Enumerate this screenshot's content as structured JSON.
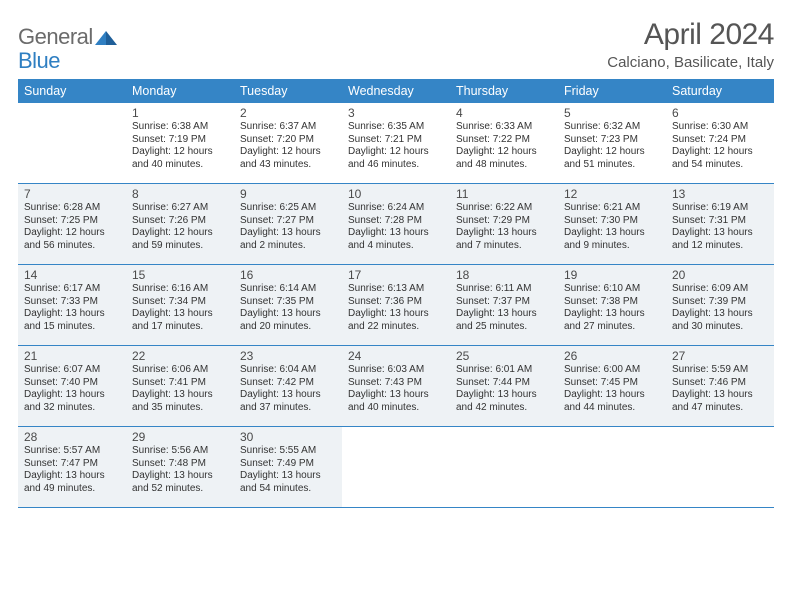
{
  "logo": {
    "word1": "General",
    "word2": "Blue"
  },
  "title": "April 2024",
  "location": "Calciano, Basilicate, Italy",
  "style": {
    "accent": "#3585c6",
    "shade_bg": "#eef2f5",
    "text_color": "#3a3a3a",
    "logo_gray": "#6b6b6b",
    "logo_blue": "#2f7fc2",
    "title_fontsize": 30,
    "location_fontsize": 15,
    "head_fontsize": 12.5,
    "cell_fontsize": 10,
    "columns": 7
  },
  "day_headers": [
    "Sunday",
    "Monday",
    "Tuesday",
    "Wednesday",
    "Thursday",
    "Friday",
    "Saturday"
  ],
  "weeks": [
    {
      "shaded": false,
      "days": [
        {
          "num": "",
          "sunrise": "",
          "sunset": "",
          "daylight": ""
        },
        {
          "num": "1",
          "sunrise": "Sunrise: 6:38 AM",
          "sunset": "Sunset: 7:19 PM",
          "daylight": "Daylight: 12 hours and 40 minutes."
        },
        {
          "num": "2",
          "sunrise": "Sunrise: 6:37 AM",
          "sunset": "Sunset: 7:20 PM",
          "daylight": "Daylight: 12 hours and 43 minutes."
        },
        {
          "num": "3",
          "sunrise": "Sunrise: 6:35 AM",
          "sunset": "Sunset: 7:21 PM",
          "daylight": "Daylight: 12 hours and 46 minutes."
        },
        {
          "num": "4",
          "sunrise": "Sunrise: 6:33 AM",
          "sunset": "Sunset: 7:22 PM",
          "daylight": "Daylight: 12 hours and 48 minutes."
        },
        {
          "num": "5",
          "sunrise": "Sunrise: 6:32 AM",
          "sunset": "Sunset: 7:23 PM",
          "daylight": "Daylight: 12 hours and 51 minutes."
        },
        {
          "num": "6",
          "sunrise": "Sunrise: 6:30 AM",
          "sunset": "Sunset: 7:24 PM",
          "daylight": "Daylight: 12 hours and 54 minutes."
        }
      ]
    },
    {
      "shaded": true,
      "days": [
        {
          "num": "7",
          "sunrise": "Sunrise: 6:28 AM",
          "sunset": "Sunset: 7:25 PM",
          "daylight": "Daylight: 12 hours and 56 minutes."
        },
        {
          "num": "8",
          "sunrise": "Sunrise: 6:27 AM",
          "sunset": "Sunset: 7:26 PM",
          "daylight": "Daylight: 12 hours and 59 minutes."
        },
        {
          "num": "9",
          "sunrise": "Sunrise: 6:25 AM",
          "sunset": "Sunset: 7:27 PM",
          "daylight": "Daylight: 13 hours and 2 minutes."
        },
        {
          "num": "10",
          "sunrise": "Sunrise: 6:24 AM",
          "sunset": "Sunset: 7:28 PM",
          "daylight": "Daylight: 13 hours and 4 minutes."
        },
        {
          "num": "11",
          "sunrise": "Sunrise: 6:22 AM",
          "sunset": "Sunset: 7:29 PM",
          "daylight": "Daylight: 13 hours and 7 minutes."
        },
        {
          "num": "12",
          "sunrise": "Sunrise: 6:21 AM",
          "sunset": "Sunset: 7:30 PM",
          "daylight": "Daylight: 13 hours and 9 minutes."
        },
        {
          "num": "13",
          "sunrise": "Sunrise: 6:19 AM",
          "sunset": "Sunset: 7:31 PM",
          "daylight": "Daylight: 13 hours and 12 minutes."
        }
      ]
    },
    {
      "shaded": true,
      "days": [
        {
          "num": "14",
          "sunrise": "Sunrise: 6:17 AM",
          "sunset": "Sunset: 7:33 PM",
          "daylight": "Daylight: 13 hours and 15 minutes."
        },
        {
          "num": "15",
          "sunrise": "Sunrise: 6:16 AM",
          "sunset": "Sunset: 7:34 PM",
          "daylight": "Daylight: 13 hours and 17 minutes."
        },
        {
          "num": "16",
          "sunrise": "Sunrise: 6:14 AM",
          "sunset": "Sunset: 7:35 PM",
          "daylight": "Daylight: 13 hours and 20 minutes."
        },
        {
          "num": "17",
          "sunrise": "Sunrise: 6:13 AM",
          "sunset": "Sunset: 7:36 PM",
          "daylight": "Daylight: 13 hours and 22 minutes."
        },
        {
          "num": "18",
          "sunrise": "Sunrise: 6:11 AM",
          "sunset": "Sunset: 7:37 PM",
          "daylight": "Daylight: 13 hours and 25 minutes."
        },
        {
          "num": "19",
          "sunrise": "Sunrise: 6:10 AM",
          "sunset": "Sunset: 7:38 PM",
          "daylight": "Daylight: 13 hours and 27 minutes."
        },
        {
          "num": "20",
          "sunrise": "Sunrise: 6:09 AM",
          "sunset": "Sunset: 7:39 PM",
          "daylight": "Daylight: 13 hours and 30 minutes."
        }
      ]
    },
    {
      "shaded": true,
      "days": [
        {
          "num": "21",
          "sunrise": "Sunrise: 6:07 AM",
          "sunset": "Sunset: 7:40 PM",
          "daylight": "Daylight: 13 hours and 32 minutes."
        },
        {
          "num": "22",
          "sunrise": "Sunrise: 6:06 AM",
          "sunset": "Sunset: 7:41 PM",
          "daylight": "Daylight: 13 hours and 35 minutes."
        },
        {
          "num": "23",
          "sunrise": "Sunrise: 6:04 AM",
          "sunset": "Sunset: 7:42 PM",
          "daylight": "Daylight: 13 hours and 37 minutes."
        },
        {
          "num": "24",
          "sunrise": "Sunrise: 6:03 AM",
          "sunset": "Sunset: 7:43 PM",
          "daylight": "Daylight: 13 hours and 40 minutes."
        },
        {
          "num": "25",
          "sunrise": "Sunrise: 6:01 AM",
          "sunset": "Sunset: 7:44 PM",
          "daylight": "Daylight: 13 hours and 42 minutes."
        },
        {
          "num": "26",
          "sunrise": "Sunrise: 6:00 AM",
          "sunset": "Sunset: 7:45 PM",
          "daylight": "Daylight: 13 hours and 44 minutes."
        },
        {
          "num": "27",
          "sunrise": "Sunrise: 5:59 AM",
          "sunset": "Sunset: 7:46 PM",
          "daylight": "Daylight: 13 hours and 47 minutes."
        }
      ]
    },
    {
      "shaded": true,
      "days": [
        {
          "num": "28",
          "sunrise": "Sunrise: 5:57 AM",
          "sunset": "Sunset: 7:47 PM",
          "daylight": "Daylight: 13 hours and 49 minutes."
        },
        {
          "num": "29",
          "sunrise": "Sunrise: 5:56 AM",
          "sunset": "Sunset: 7:48 PM",
          "daylight": "Daylight: 13 hours and 52 minutes."
        },
        {
          "num": "30",
          "sunrise": "Sunrise: 5:55 AM",
          "sunset": "Sunset: 7:49 PM",
          "daylight": "Daylight: 13 hours and 54 minutes."
        },
        {
          "num": "",
          "sunrise": "",
          "sunset": "",
          "daylight": ""
        },
        {
          "num": "",
          "sunrise": "",
          "sunset": "",
          "daylight": ""
        },
        {
          "num": "",
          "sunrise": "",
          "sunset": "",
          "daylight": ""
        },
        {
          "num": "",
          "sunrise": "",
          "sunset": "",
          "daylight": ""
        }
      ]
    }
  ]
}
